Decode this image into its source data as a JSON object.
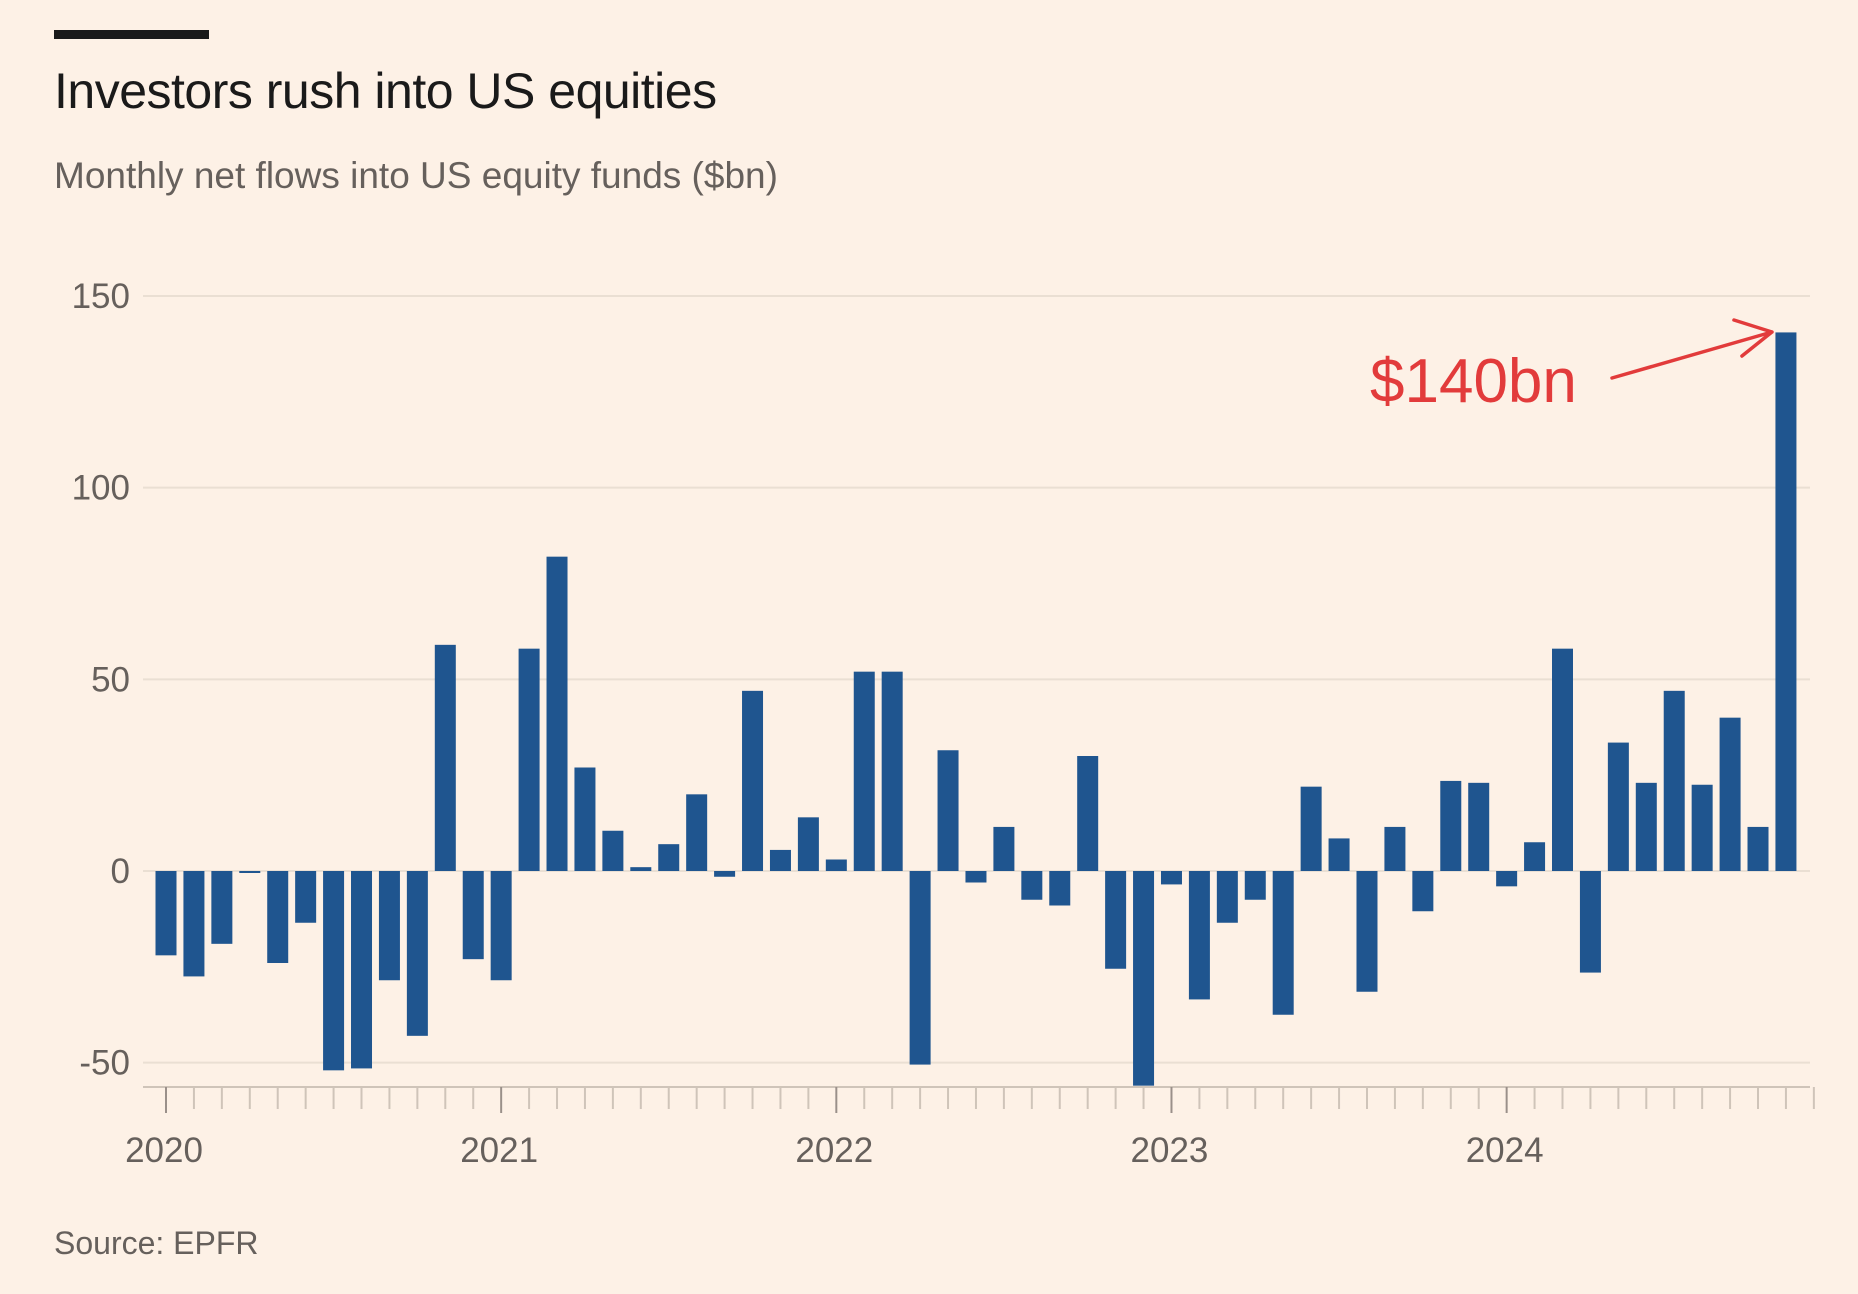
{
  "colors": {
    "background": "#fdf1e6",
    "bar": "#1f558f",
    "grid": "#eadfd3",
    "axis": "#cfc4b9",
    "annotation": "#e23b3b"
  },
  "chart_data": {
    "type": "bar",
    "title": "Investors rush into US equities",
    "subtitle": "Monthly net flows into US equity funds ($bn)",
    "source": "Source: EPFR",
    "ylim": [
      -57,
      152
    ],
    "yticks": [
      150,
      100,
      50,
      0,
      -50
    ],
    "grid": true,
    "x_tick_labels": [
      {
        "label": "2020",
        "index": 0
      },
      {
        "label": "2021",
        "index": 12
      },
      {
        "label": "2022",
        "index": 24
      },
      {
        "label": "2023",
        "index": 36
      },
      {
        "label": "2024",
        "index": 48
      }
    ],
    "categories": [
      "2020-01",
      "2020-02",
      "2020-03",
      "2020-04",
      "2020-05",
      "2020-06",
      "2020-07",
      "2020-08",
      "2020-09",
      "2020-10",
      "2020-11",
      "2020-12",
      "2021-01",
      "2021-02",
      "2021-03",
      "2021-04",
      "2021-05",
      "2021-06",
      "2021-07",
      "2021-08",
      "2021-09",
      "2021-10",
      "2021-11",
      "2021-12",
      "2022-01",
      "2022-02",
      "2022-03",
      "2022-04",
      "2022-05",
      "2022-06",
      "2022-07",
      "2022-08",
      "2022-09",
      "2022-10",
      "2022-11",
      "2022-12",
      "2023-01",
      "2023-02",
      "2023-03",
      "2023-04",
      "2023-05",
      "2023-06",
      "2023-07",
      "2023-08",
      "2023-09",
      "2023-10",
      "2023-11",
      "2023-12",
      "2024-01",
      "2024-02",
      "2024-03",
      "2024-04",
      "2024-05",
      "2024-06",
      "2024-07",
      "2024-08",
      "2024-09",
      "2024-10",
      "2024-11"
    ],
    "values": [
      -22,
      -27.5,
      -19,
      -0.5,
      -24,
      -13.5,
      -52,
      -51.5,
      -28.5,
      -43,
      59,
      -23,
      -28.5,
      58,
      82,
      27,
      10.5,
      1,
      7,
      20,
      -1.5,
      47,
      5.5,
      14,
      3,
      52,
      52,
      -50.5,
      31.5,
      -3,
      11.5,
      -7.5,
      -9,
      30,
      -25.5,
      -56,
      -3.5,
      -33.5,
      -13.5,
      -7.5,
      -37.5,
      22,
      8.5,
      -31.5,
      11.5,
      -10.5,
      23.5,
      23,
      -4,
      7.5,
      58,
      -26.5,
      33.5,
      23,
      47,
      22.5,
      40,
      11.5,
      140.5
    ],
    "annotation": {
      "text": "$140bn",
      "target_index": 58
    }
  }
}
